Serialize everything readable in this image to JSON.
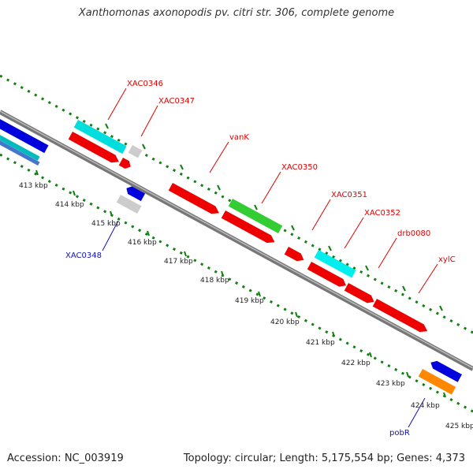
{
  "title": "Xanthomonas axonopodis pv. citri str. 306, complete genome",
  "footer": {
    "accession": "Accession: NC_003919",
    "topology": "Topology: circular; Length: 5,175,554 bp; Genes: 4,373"
  },
  "colors": {
    "forward_label": "#e00000",
    "reverse_label": "#1010c0",
    "backbone": "#888888",
    "gc_dots": "#108010"
  },
  "scale_labels": [
    "413 kbp",
    "414 kbp",
    "415 kbp",
    "416 kbp",
    "417 kbp",
    "418 kbp",
    "419 kbp",
    "420 kbp",
    "421 kbp",
    "422 kbp",
    "423 kbp",
    "424 kbp",
    "425 kbp"
  ],
  "gene_labels": [
    {
      "text": "XAC0346",
      "strand": "forward"
    },
    {
      "text": "XAC0347",
      "strand": "forward"
    },
    {
      "text": "vanK",
      "strand": "forward"
    },
    {
      "text": "XAC0350",
      "strand": "forward"
    },
    {
      "text": "XAC0351",
      "strand": "forward"
    },
    {
      "text": "XAC0352",
      "strand": "forward"
    },
    {
      "text": "drb0080",
      "strand": "forward"
    },
    {
      "text": "xylC",
      "strand": "forward"
    },
    {
      "text": "XAC0348",
      "strand": "reverse"
    },
    {
      "text": "pobR",
      "strand": "reverse"
    }
  ],
  "features": [
    {
      "color": "#0000dd",
      "type": "reverse-cds"
    },
    {
      "color": "#00bbbb",
      "type": "cog"
    },
    {
      "color": "#4477cc",
      "type": "cog"
    },
    {
      "color": "#00dddd",
      "type": "cog"
    },
    {
      "color": "#ee0000",
      "type": "forward-cds"
    },
    {
      "color": "#cccccc",
      "type": "cog"
    },
    {
      "color": "#ee0000",
      "type": "forward-cds"
    },
    {
      "color": "#0000dd",
      "type": "reverse-cds"
    },
    {
      "color": "#cccccc",
      "type": "cog"
    },
    {
      "color": "#ee0000",
      "type": "forward-cds"
    },
    {
      "color": "#33cc33",
      "type": "cog"
    },
    {
      "color": "#ee0000",
      "type": "forward-cds"
    },
    {
      "color": "#ee0000",
      "type": "forward-cds"
    },
    {
      "color": "#00eeee",
      "type": "cog"
    },
    {
      "color": "#ee0000",
      "type": "forward-cds"
    },
    {
      "color": "#ee0000",
      "type": "forward-cds"
    },
    {
      "color": "#ee0000",
      "type": "forward-cds"
    },
    {
      "color": "#0000dd",
      "type": "reverse-cds"
    },
    {
      "color": "#ff8800",
      "type": "cog"
    }
  ]
}
